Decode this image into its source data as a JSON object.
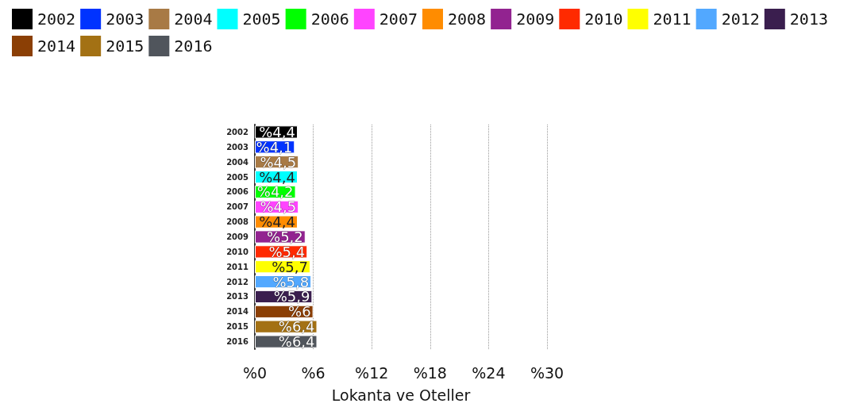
{
  "chart_data": {
    "type": "bar",
    "orientation": "horizontal",
    "stacked": true,
    "xlabel": "Lokanta ve Oteller",
    "categories": [
      "2002",
      "2003",
      "2004",
      "2005",
      "2006",
      "2007",
      "2008",
      "2009",
      "2010",
      "2011",
      "2012",
      "2013",
      "2014",
      "2015",
      "2016"
    ],
    "series": [
      {
        "name": "2002",
        "color": "#000000",
        "values": [
          4.4,
          null,
          null,
          null,
          null,
          null,
          null,
          null,
          null,
          null,
          null,
          null,
          null,
          null,
          null
        ],
        "value_labels": [
          "%4,4",
          null,
          null,
          null,
          null,
          null,
          null,
          null,
          null,
          null,
          null,
          null,
          null,
          null,
          null
        ]
      },
      {
        "name": "2003",
        "color": "#0033ff",
        "values": [
          null,
          4.1,
          null,
          null,
          null,
          null,
          null,
          null,
          null,
          null,
          null,
          null,
          null,
          null,
          null
        ],
        "value_labels": [
          null,
          "%4,1",
          null,
          null,
          null,
          null,
          null,
          null,
          null,
          null,
          null,
          null,
          null,
          null,
          null
        ]
      },
      {
        "name": "2004",
        "color": "#a87a45",
        "values": [
          null,
          null,
          4.5,
          null,
          null,
          null,
          null,
          null,
          null,
          null,
          null,
          null,
          null,
          null,
          null
        ],
        "value_labels": [
          null,
          null,
          "%4,5",
          null,
          null,
          null,
          null,
          null,
          null,
          null,
          null,
          null,
          null,
          null,
          null
        ]
      },
      {
        "name": "2005",
        "color": "#00ffff",
        "values": [
          null,
          null,
          null,
          4.4,
          null,
          null,
          null,
          null,
          null,
          null,
          null,
          null,
          null,
          null,
          null
        ],
        "value_labels": [
          null,
          null,
          null,
          "%4,4",
          null,
          null,
          null,
          null,
          null,
          null,
          null,
          null,
          null,
          null,
          null
        ]
      },
      {
        "name": "2006",
        "color": "#00ff00",
        "values": [
          null,
          null,
          null,
          null,
          4.2,
          null,
          null,
          null,
          null,
          null,
          null,
          null,
          null,
          null,
          null
        ],
        "value_labels": [
          null,
          null,
          null,
          null,
          "%4,2",
          null,
          null,
          null,
          null,
          null,
          null,
          null,
          null,
          null,
          null
        ]
      },
      {
        "name": "2007",
        "color": "#ff44ff",
        "values": [
          null,
          null,
          null,
          null,
          null,
          4.5,
          null,
          null,
          null,
          null,
          null,
          null,
          null,
          null,
          null
        ],
        "value_labels": [
          null,
          null,
          null,
          null,
          null,
          "%4,5",
          null,
          null,
          null,
          null,
          null,
          null,
          null,
          null,
          null
        ]
      },
      {
        "name": "2008",
        "color": "#ff8c00",
        "values": [
          null,
          null,
          null,
          null,
          null,
          null,
          4.4,
          null,
          null,
          null,
          null,
          null,
          null,
          null,
          null
        ],
        "value_labels": [
          null,
          null,
          null,
          null,
          null,
          null,
          "%4,4",
          null,
          null,
          null,
          null,
          null,
          null,
          null,
          null
        ]
      },
      {
        "name": "2009",
        "color": "#922390",
        "values": [
          null,
          null,
          null,
          null,
          null,
          null,
          null,
          5.2,
          null,
          null,
          null,
          null,
          null,
          null,
          null
        ],
        "value_labels": [
          null,
          null,
          null,
          null,
          null,
          null,
          null,
          "%5,2",
          null,
          null,
          null,
          null,
          null,
          null,
          null
        ]
      },
      {
        "name": "2010",
        "color": "#ff2a00",
        "values": [
          null,
          null,
          null,
          null,
          null,
          null,
          null,
          null,
          5.4,
          null,
          null,
          null,
          null,
          null,
          null
        ],
        "value_labels": [
          null,
          null,
          null,
          null,
          null,
          null,
          null,
          null,
          "%5,4",
          null,
          null,
          null,
          null,
          null,
          null
        ]
      },
      {
        "name": "2011",
        "color": "#ffff00",
        "values": [
          null,
          null,
          null,
          null,
          null,
          null,
          null,
          null,
          null,
          5.7,
          null,
          null,
          null,
          null,
          null
        ],
        "value_labels": [
          null,
          null,
          null,
          null,
          null,
          null,
          null,
          null,
          null,
          "%5,7",
          null,
          null,
          null,
          null,
          null
        ]
      },
      {
        "name": "2012",
        "color": "#52a8ff",
        "values": [
          null,
          null,
          null,
          null,
          null,
          null,
          null,
          null,
          null,
          null,
          5.8,
          null,
          null,
          null,
          null
        ],
        "value_labels": [
          null,
          null,
          null,
          null,
          null,
          null,
          null,
          null,
          null,
          null,
          "%5,8",
          null,
          null,
          null,
          null
        ]
      },
      {
        "name": "2013",
        "color": "#3a1e4e",
        "values": [
          null,
          null,
          null,
          null,
          null,
          null,
          null,
          null,
          null,
          null,
          null,
          5.9,
          null,
          null,
          null
        ],
        "value_labels": [
          null,
          null,
          null,
          null,
          null,
          null,
          null,
          null,
          null,
          null,
          null,
          "%5,9",
          null,
          null,
          null
        ]
      },
      {
        "name": "2014",
        "color": "#8b3f05",
        "values": [
          null,
          null,
          null,
          null,
          null,
          null,
          null,
          null,
          null,
          null,
          null,
          null,
          6,
          null,
          null
        ],
        "value_labels": [
          null,
          null,
          null,
          null,
          null,
          null,
          null,
          null,
          null,
          null,
          null,
          null,
          "%6",
          null,
          null
        ]
      },
      {
        "name": "2015",
        "color": "#a37114",
        "values": [
          null,
          null,
          null,
          null,
          null,
          null,
          null,
          null,
          null,
          null,
          null,
          null,
          null,
          6.4,
          null
        ],
        "value_labels": [
          null,
          null,
          null,
          null,
          null,
          null,
          null,
          null,
          null,
          null,
          null,
          null,
          null,
          "%6,4",
          null
        ]
      },
      {
        "name": "2016",
        "color": "#50555c",
        "values": [
          null,
          null,
          null,
          null,
          null,
          null,
          null,
          null,
          null,
          null,
          null,
          null,
          null,
          null,
          6.4
        ],
        "value_labels": [
          null,
          null,
          null,
          null,
          null,
          null,
          null,
          null,
          null,
          null,
          null,
          null,
          null,
          null,
          "%6,4"
        ]
      }
    ],
    "xlim": [
      0,
      30
    ],
    "xticks": [
      {
        "value": 0,
        "label": "%0"
      },
      {
        "value": 6,
        "label": "%6"
      },
      {
        "value": 12,
        "label": "%12"
      },
      {
        "value": 18,
        "label": "%18"
      },
      {
        "value": 24,
        "label": "%24"
      },
      {
        "value": 30,
        "label": "%30"
      }
    ],
    "grid": "x",
    "legend": "top"
  }
}
